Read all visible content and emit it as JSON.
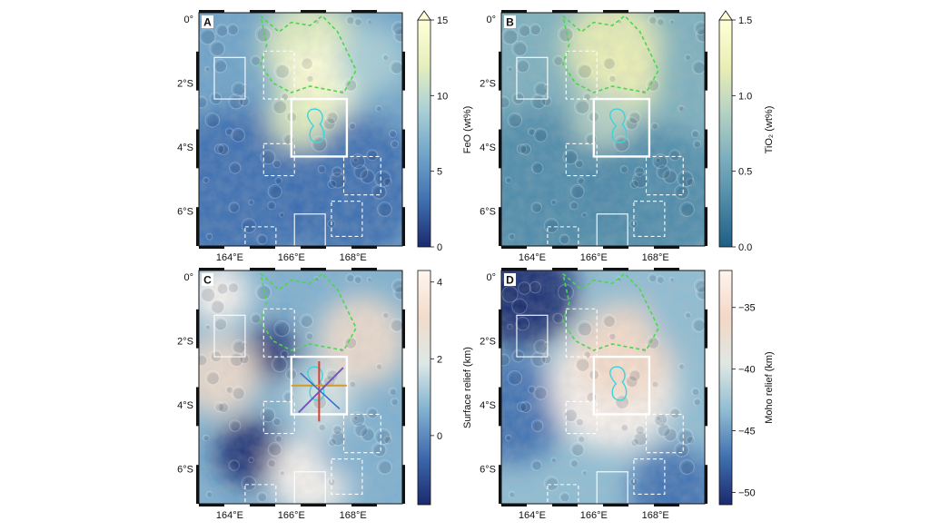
{
  "figure": {
    "panels": [
      {
        "letter": "A",
        "colorbar": {
          "label": "FeO (wt%)",
          "ticks": [
            "0",
            "5",
            "10",
            "15"
          ],
          "tick_values": [
            0,
            5,
            10,
            15
          ],
          "range": [
            0,
            15
          ],
          "extend_max": true,
          "colors": [
            "#1b2a6e",
            "#3f6fb0",
            "#6fa3c8",
            "#a9cfd6",
            "#e6efbe",
            "#ffffd8"
          ]
        },
        "map_tint": "feo",
        "overlays": [
          "profiles-none"
        ]
      },
      {
        "letter": "B",
        "colorbar": {
          "label": "TiO₂ (wt%)",
          "ticks": [
            "0.0",
            "0.5",
            "1.0",
            "1.5"
          ],
          "tick_values": [
            0,
            0.5,
            1.0,
            1.5
          ],
          "range": [
            0,
            1.5
          ],
          "extend_max": true,
          "colors": [
            "#1f5e86",
            "#4d8aa8",
            "#7eb0be",
            "#b7d3c4",
            "#ecefb4",
            "#ffffd8"
          ]
        },
        "map_tint": "tio2",
        "overlays": [
          "profiles-none"
        ]
      },
      {
        "letter": "C",
        "colorbar": {
          "label": "Surface relief (km)",
          "ticks": [
            "0",
            "2",
            "4"
          ],
          "tick_values": [
            0,
            2,
            4
          ],
          "range": [
            -1.8,
            4.3
          ],
          "extend_max": false,
          "colors": [
            "#1b2a6e",
            "#3d68ac",
            "#7fb0cf",
            "#dce8e6",
            "#f1dccb",
            "#fff6ee"
          ]
        },
        "map_tint": "relief",
        "overlays": [
          "profiles"
        ]
      },
      {
        "letter": "D",
        "colorbar": {
          "label": "Moho relief (km)",
          "ticks": [
            "−35",
            "−40",
            "−45",
            "−50"
          ],
          "tick_values": [
            -35,
            -40,
            -45,
            -50
          ],
          "range": [
            -51,
            -32
          ],
          "extend_max": false,
          "colors": [
            "#1b2a6e",
            "#3f6fb0",
            "#8fbcd2",
            "#dfe7e3",
            "#f2d8c6",
            "#fff4ec"
          ]
        },
        "map_tint": "moho",
        "overlays": [
          "profiles-none"
        ]
      }
    ],
    "axes": {
      "lat_labels": [
        "0°",
        "2°S",
        "4°S",
        "6°S"
      ],
      "lat_values": [
        0,
        -2,
        -4,
        -6
      ],
      "lon_labels": [
        "164°E",
        "166°E",
        "168°E"
      ],
      "lon_values": [
        164,
        166,
        168
      ],
      "lat_range": [
        -7.1,
        0.2
      ],
      "lon_range": [
        163.0,
        169.6
      ]
    },
    "colors": {
      "mare_outline": "#49d84a",
      "central_feature": "#3fd3dc",
      "box": "#ffffff",
      "profile_1": "#e23b2e",
      "profile_2": "#d39a2b",
      "profile_3": "#7b52c8",
      "profile_4": "#3a6fd0"
    }
  }
}
